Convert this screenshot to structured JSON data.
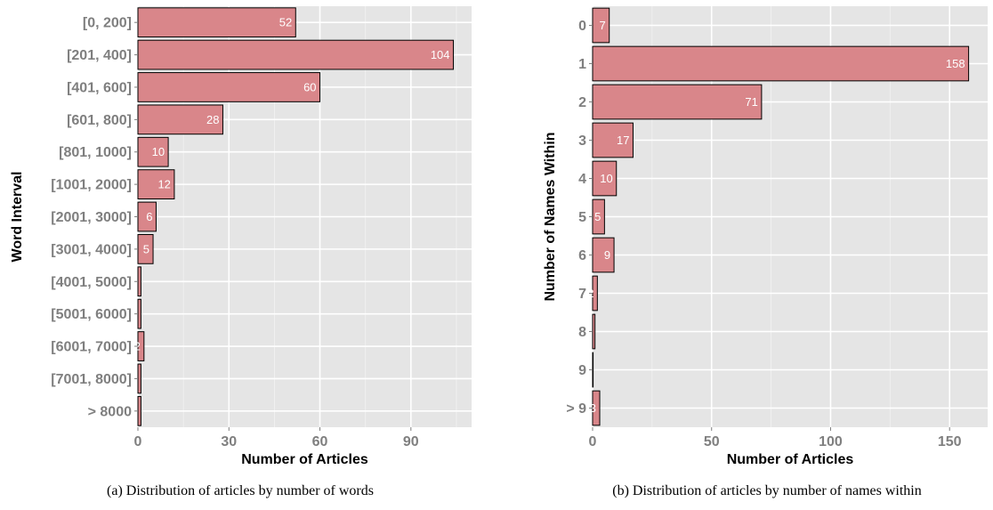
{
  "colors": {
    "panel": "#e5e5e5",
    "grid_major": "#ffffff",
    "grid_minor": "#f2f2f2",
    "bar_fill": "#d9868a",
    "bar_stroke": "#000000",
    "bar_label": "#ffffff",
    "tick_label": "#7f7f7f"
  },
  "chart_data": [
    {
      "type": "bar",
      "orientation": "horizontal",
      "caption": "(a)  Distribution of articles by number of words",
      "xlabel": "Number of Articles",
      "ylabel": "Word Interval",
      "xlim": [
        0,
        110
      ],
      "xticks": [
        0,
        30,
        60,
        90
      ],
      "categories": [
        "[0, 200]",
        "[201, 400]",
        "[401, 600]",
        "[601, 800]",
        "[801, 1000]",
        "[1001, 2000]",
        "[2001, 3000]",
        "[3001, 4000]",
        "[4001, 5000]",
        "[5001, 6000]",
        "[6001, 7000]",
        "[7001, 8000]",
        "> 8000"
      ],
      "values": [
        52,
        104,
        60,
        28,
        10,
        12,
        6,
        5,
        1,
        1,
        2,
        1,
        1
      ],
      "data_labels": [
        "52",
        "104",
        "60",
        "28",
        "10",
        "12",
        "6",
        "5",
        "",
        "",
        "2",
        "",
        ""
      ],
      "grid": true,
      "legend": "none"
    },
    {
      "type": "bar",
      "orientation": "horizontal",
      "caption": "(b)  Distribution of articles by number of names within",
      "xlabel": "Number of Articles",
      "ylabel": "Number of Names Within",
      "xlim": [
        0,
        166
      ],
      "xticks": [
        0,
        50,
        100,
        150
      ],
      "categories": [
        "0",
        "1",
        "2",
        "3",
        "4",
        "5",
        "6",
        "7",
        "8",
        "9",
        "> 9"
      ],
      "values": [
        7,
        158,
        71,
        17,
        10,
        5,
        9,
        2,
        1,
        0,
        3
      ],
      "data_labels": [
        "7",
        "158",
        "71",
        "17",
        "10",
        "5",
        "9",
        "2",
        "",
        "0",
        "3"
      ],
      "grid": true,
      "legend": "none"
    }
  ]
}
